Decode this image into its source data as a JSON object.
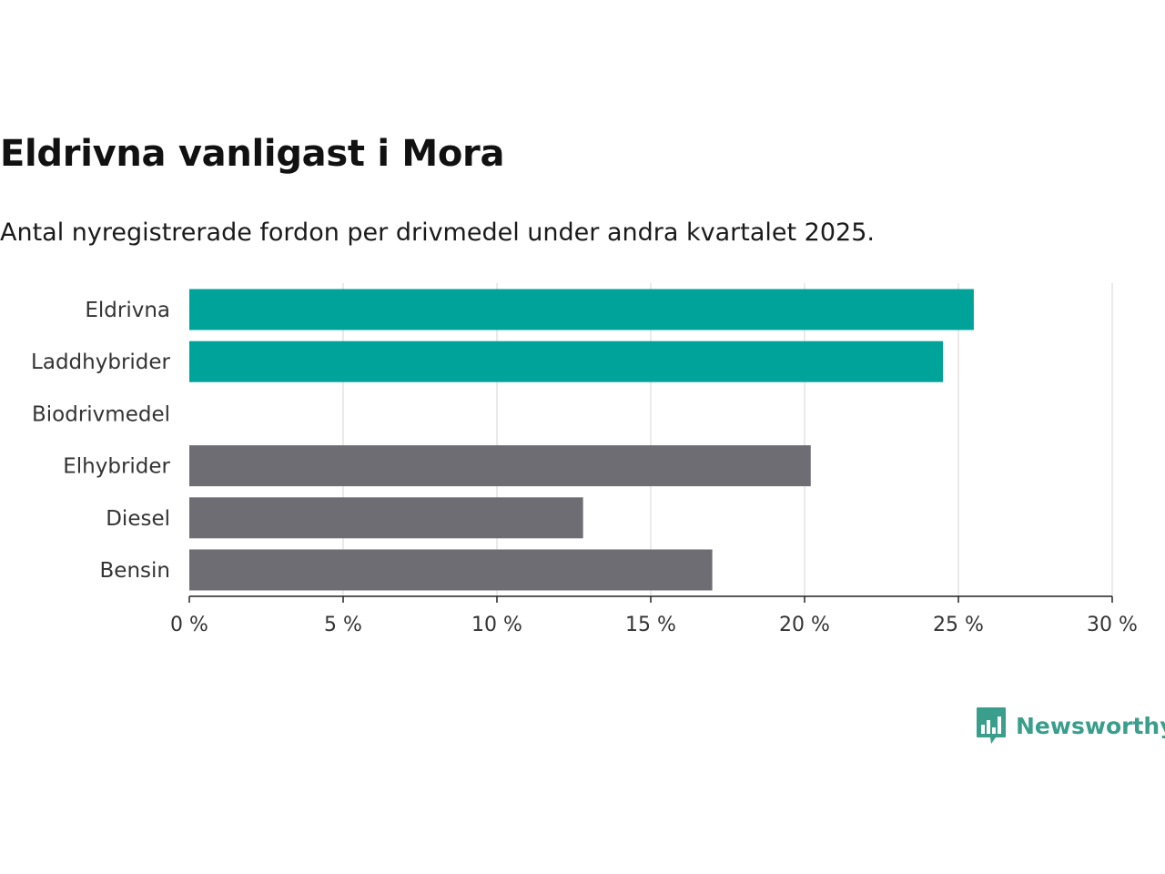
{
  "title": "Eldrivna vanligast i Mora",
  "subtitle": "Antal nyregistrerade fordon per drivmedel under andra kvartalet 2025.",
  "brand": {
    "name": "Newsworthy",
    "color": "#3a9e8c",
    "icon": "bar-chart-speech-bubble-icon"
  },
  "colors": {
    "highlight": "#00a39a",
    "other": "#6e6d73",
    "grid": "#dddddd",
    "axis": "#222222"
  },
  "chart_data": {
    "type": "bar",
    "orientation": "horizontal",
    "categories": [
      "Eldrivna",
      "Laddhybrider",
      "Biodrivmedel",
      "Elhybrider",
      "Diesel",
      "Bensin"
    ],
    "values": [
      25.5,
      24.5,
      0,
      20.2,
      12.8,
      17.0
    ],
    "highlight": [
      true,
      true,
      false,
      false,
      false,
      false
    ],
    "xlim": [
      0,
      30
    ],
    "ticks": [
      0,
      5,
      10,
      15,
      20,
      25,
      30
    ],
    "tick_labels": [
      "0 %",
      "5 %",
      "10 %",
      "15 %",
      "20 %",
      "25 %",
      "30 %"
    ],
    "grid": true
  }
}
